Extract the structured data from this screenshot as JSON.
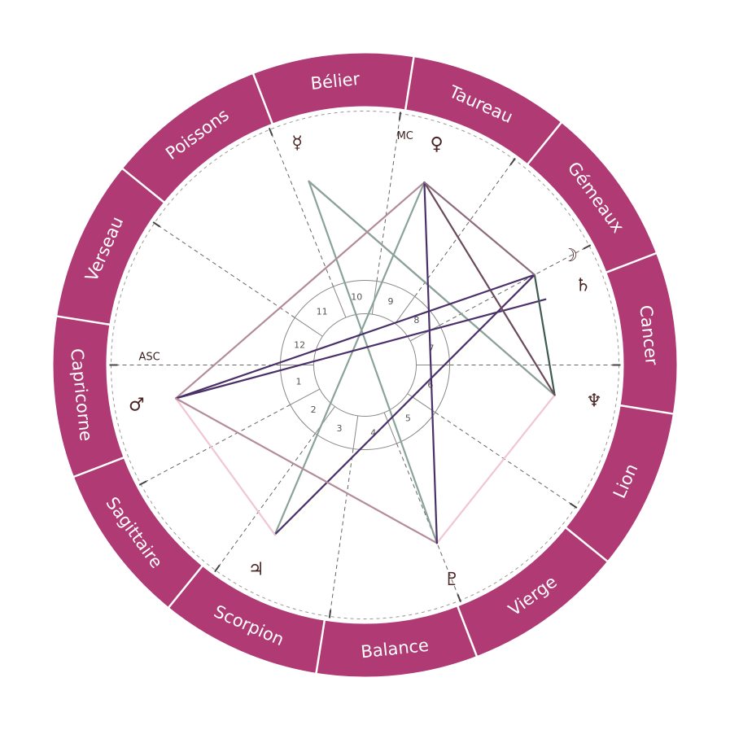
{
  "colors": {
    "ring": "#b03a74",
    "ring_text": "#ffffff",
    "glyph": "#4a2424",
    "dashes": "#666666",
    "inner_ring": "#888888"
  },
  "signs": [
    {
      "name": "Bélier",
      "center_deg": 96
    },
    {
      "name": "Taureau",
      "center_deg": 66
    },
    {
      "name": "Gémeaux",
      "center_deg": 36
    },
    {
      "name": "Cancer",
      "center_deg": 6
    },
    {
      "name": "Lion",
      "center_deg": -24
    },
    {
      "name": "Vierge",
      "center_deg": -54
    },
    {
      "name": "Balance",
      "center_deg": -84
    },
    {
      "name": "Scorpion",
      "center_deg": -114
    },
    {
      "name": "Sagittaire",
      "center_deg": -144
    },
    {
      "name": "Capricorne",
      "center_deg": -174
    },
    {
      "name": "Verseau",
      "center_deg": 156
    },
    {
      "name": "Poissons",
      "center_deg": 126
    }
  ],
  "sign_boundaries_deg": [
    81,
    51,
    21,
    -9,
    -39,
    -69,
    -99,
    -129,
    -159,
    171,
    141,
    111
  ],
  "houses": [
    {
      "number": "1",
      "cusp_deg": 180
    },
    {
      "number": "2",
      "cusp_deg": 208
    },
    {
      "number": "3",
      "cusp_deg": 234
    },
    {
      "number": "4",
      "cusp_deg": 262
    },
    {
      "number": "5",
      "cusp_deg": 292
    },
    {
      "number": "6",
      "cusp_deg": 326
    },
    {
      "number": "7",
      "cusp_deg": 0
    },
    {
      "number": "8",
      "cusp_deg": 28
    },
    {
      "number": "9",
      "cusp_deg": 54
    },
    {
      "number": "10",
      "cusp_deg": 82
    },
    {
      "number": "11",
      "cusp_deg": 112
    },
    {
      "number": "12",
      "cusp_deg": 146
    }
  ],
  "axes": {
    "asc": {
      "label": "ASC",
      "deg": 180
    },
    "mc": {
      "label": "MC",
      "deg": 82
    }
  },
  "planets": [
    {
      "id": "mercury",
      "glyph": "☿",
      "deg": 107
    },
    {
      "id": "venus",
      "glyph": "♀",
      "deg": 72
    },
    {
      "id": "moon",
      "glyph": "☽",
      "deg": 28
    },
    {
      "id": "saturn",
      "glyph": "♄",
      "deg": 20
    },
    {
      "id": "neptune",
      "glyph": "♆",
      "deg": -9
    },
    {
      "id": "pluto",
      "glyph": "♇",
      "deg": -68
    },
    {
      "id": "jupiter",
      "glyph": "♃",
      "deg": -118
    },
    {
      "id": "mars",
      "glyph": "♂",
      "deg": -170
    }
  ],
  "aspects": [
    {
      "from": "mercury",
      "to": "neptune",
      "color": "#c59aa8"
    },
    {
      "from": "mercury",
      "to": "neptune",
      "color": "#8aa39a"
    },
    {
      "from": "mercury",
      "to": "pluto",
      "color": "#8aa39a"
    },
    {
      "from": "venus",
      "to": "jupiter",
      "color": "#8aa39a"
    },
    {
      "from": "venus",
      "to": "mars",
      "color": "#b38c9a"
    },
    {
      "from": "moon",
      "to": "mars",
      "color": "#4a3069"
    },
    {
      "from": "saturn",
      "to": "mars",
      "color": "#4a3069"
    },
    {
      "from": "moon",
      "to": "neptune",
      "color": "#3f5a4f"
    },
    {
      "from": "moon",
      "to": "jupiter",
      "color": "#4a3069"
    },
    {
      "from": "mars",
      "to": "jupiter",
      "color": "#efc6d2"
    },
    {
      "from": "neptune",
      "to": "pluto",
      "color": "#efc6d2"
    },
    {
      "from": "mars",
      "to": "pluto",
      "color": "#b38c9a"
    },
    {
      "from": "neptune",
      "to": "venus",
      "color": "#6b4a5c"
    },
    {
      "from": "venus",
      "to": "pluto",
      "color": "#4a3069"
    },
    {
      "from": "venus",
      "to": "moon",
      "color": "#8c6c7c"
    }
  ]
}
